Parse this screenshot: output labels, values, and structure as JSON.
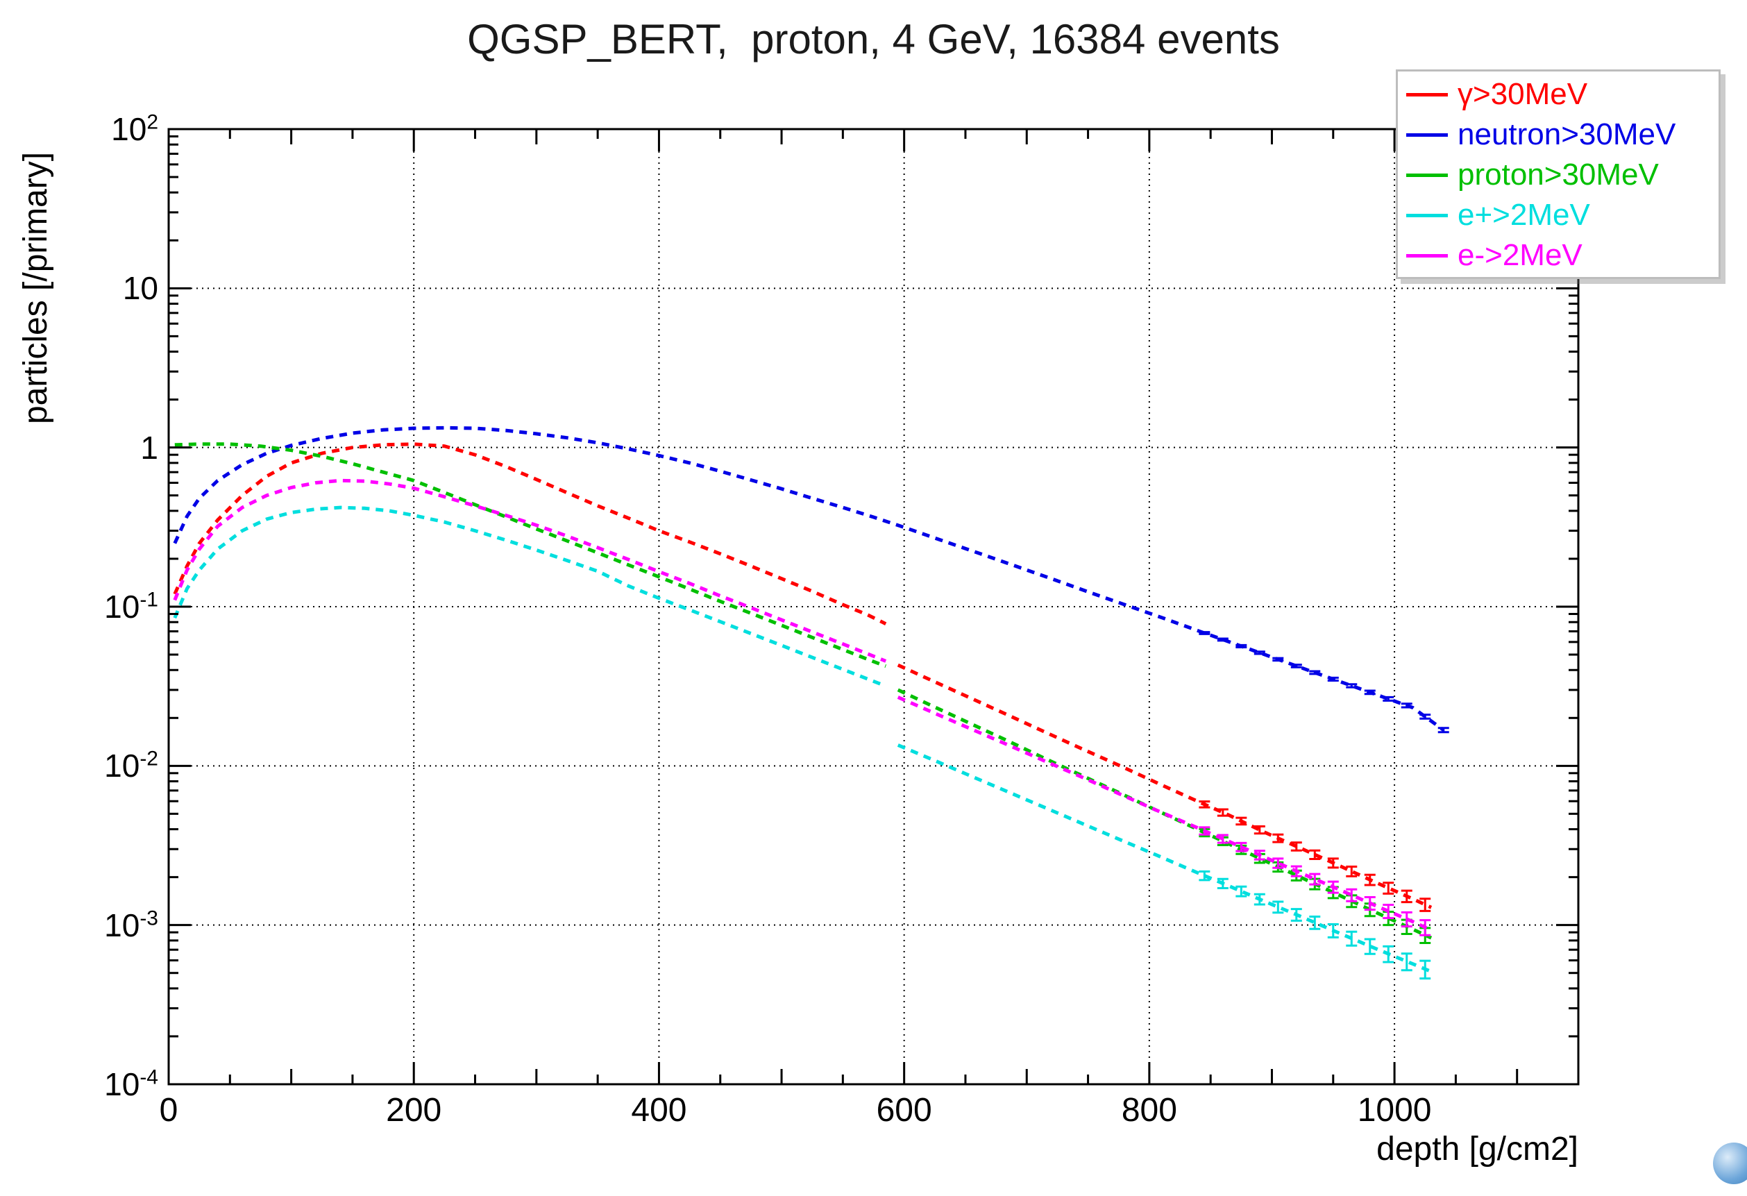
{
  "chart_data": {
    "type": "line",
    "title": "QGSP_BERT,  proton, 4 GeV, 16384 events",
    "xlabel": "depth [g/cm2]",
    "ylabel": "particles [/primary]",
    "x_axis": {
      "min": 0,
      "max": 1150,
      "major_ticks": [
        0,
        200,
        400,
        600,
        800,
        1000
      ],
      "minor_step": 50,
      "tick_labels": [
        "0",
        "200",
        "400",
        "600",
        "800",
        "1000"
      ]
    },
    "y_axis": {
      "scale": "log",
      "min": 0.0001,
      "max": 100,
      "ticks": [
        {
          "main": "10",
          "sup": "2",
          "value": 100
        },
        {
          "main": "10",
          "sup": "",
          "value": 10
        },
        {
          "main": "1",
          "sup": "",
          "value": 1
        },
        {
          "main": "10",
          "sup": "-1",
          "value": 0.1
        },
        {
          "main": "10",
          "sup": "-2",
          "value": 0.01
        },
        {
          "main": "10",
          "sup": "-3",
          "value": 0.001
        },
        {
          "main": "10",
          "sup": "-4",
          "value": 0.0001
        }
      ]
    },
    "grid": {
      "show": true,
      "style": "dotted",
      "color": "#000000"
    },
    "legend": {
      "position": "top-right",
      "border_color": "#bdbdbd",
      "entries": [
        {
          "label": "γ>30MeV",
          "color": "#ff0000"
        },
        {
          "label": "neutron>30MeV",
          "color": "#0000e6"
        },
        {
          "label": "proton>30MeV",
          "color": "#00bf00"
        },
        {
          "label": "e+>2MeV",
          "color": "#00dede"
        },
        {
          "label": "e->2MeV",
          "color": "#ff00ff"
        }
      ]
    },
    "error_bars": {
      "from_x": 845,
      "step_x": 15,
      "tau": 250
    },
    "series": [
      {
        "key": "gamma",
        "name": "gamma>30MeV",
        "color": "#ff0000",
        "rel_err_end": 0.09,
        "segments": [
          [
            [
              5,
              0.12
            ],
            [
              15,
              0.18
            ],
            [
              25,
              0.25
            ],
            [
              40,
              0.35
            ],
            [
              60,
              0.5
            ],
            [
              80,
              0.66
            ],
            [
              100,
              0.8
            ],
            [
              125,
              0.92
            ],
            [
              150,
              1.0
            ],
            [
              175,
              1.04
            ],
            [
              200,
              1.05
            ],
            [
              225,
              1.02
            ],
            [
              250,
              0.9
            ],
            [
              275,
              0.76
            ],
            [
              300,
              0.63
            ],
            [
              325,
              0.52
            ],
            [
              350,
              0.43
            ],
            [
              375,
              0.36
            ],
            [
              400,
              0.3
            ],
            [
              425,
              0.255
            ],
            [
              450,
              0.215
            ],
            [
              475,
              0.18
            ],
            [
              500,
              0.15
            ],
            [
              525,
              0.125
            ],
            [
              550,
              0.103
            ],
            [
              570,
              0.089
            ],
            [
              585,
              0.078
            ]
          ],
          [
            [
              595,
              0.043
            ],
            [
              625,
              0.0337
            ],
            [
              655,
              0.0265
            ],
            [
              685,
              0.0208
            ],
            [
              715,
              0.0163
            ],
            [
              745,
              0.0128
            ],
            [
              775,
              0.0101
            ],
            [
              805,
              0.0079
            ],
            [
              835,
              0.0062
            ],
            [
              865,
              0.0049
            ],
            [
              895,
              0.0038
            ],
            [
              925,
              0.003
            ],
            [
              955,
              0.00236
            ],
            [
              985,
              0.00185
            ],
            [
              1015,
              0.00146
            ],
            [
              1030,
              0.00129
            ]
          ]
        ]
      },
      {
        "key": "neutron",
        "name": "neutron>30MeV",
        "color": "#0000e6",
        "rel_err_end": 0.03,
        "segments": [
          [
            [
              5,
              0.25
            ],
            [
              15,
              0.37
            ],
            [
              25,
              0.48
            ],
            [
              40,
              0.62
            ],
            [
              60,
              0.78
            ],
            [
              80,
              0.92
            ],
            [
              100,
              1.03
            ],
            [
              125,
              1.14
            ],
            [
              150,
              1.23
            ],
            [
              175,
              1.29
            ],
            [
              200,
              1.32
            ],
            [
              225,
              1.33
            ],
            [
              250,
              1.32
            ],
            [
              275,
              1.28
            ],
            [
              300,
              1.22
            ],
            [
              325,
              1.15
            ],
            [
              350,
              1.07
            ],
            [
              375,
              0.98
            ],
            [
              400,
              0.89
            ],
            [
              425,
              0.8
            ],
            [
              450,
              0.71
            ],
            [
              475,
              0.625
            ],
            [
              500,
              0.55
            ],
            [
              525,
              0.48
            ],
            [
              550,
              0.42
            ],
            [
              575,
              0.365
            ],
            [
              600,
              0.315
            ],
            [
              630,
              0.262
            ],
            [
              660,
              0.218
            ],
            [
              690,
              0.181
            ],
            [
              720,
              0.15
            ],
            [
              750,
              0.124
            ],
            [
              780,
              0.103
            ],
            [
              810,
              0.0855
            ],
            [
              840,
              0.0705
            ],
            [
              870,
              0.0583
            ],
            [
              900,
              0.0482
            ],
            [
              930,
              0.0398
            ],
            [
              960,
              0.0329
            ],
            [
              990,
              0.0272
            ],
            [
              1015,
              0.0232
            ],
            [
              1040,
              0.0168
            ]
          ]
        ]
      },
      {
        "key": "proton",
        "name": "proton>30MeV",
        "color": "#00bf00",
        "rel_err_end": 0.11,
        "segments": [
          [
            [
              5,
              1.04
            ],
            [
              25,
              1.05
            ],
            [
              50,
              1.05
            ],
            [
              75,
              1.02
            ],
            [
              100,
              0.96
            ],
            [
              125,
              0.88
            ],
            [
              150,
              0.79
            ],
            [
              175,
              0.7
            ],
            [
              200,
              0.62
            ],
            [
              225,
              0.521
            ],
            [
              250,
              0.437
            ],
            [
              275,
              0.367
            ],
            [
              300,
              0.308
            ],
            [
              325,
              0.259
            ],
            [
              350,
              0.218
            ],
            [
              375,
              0.183
            ],
            [
              400,
              0.154
            ],
            [
              425,
              0.129
            ],
            [
              450,
              0.108
            ],
            [
              475,
              0.0909
            ],
            [
              500,
              0.0763
            ],
            [
              525,
              0.0641
            ],
            [
              550,
              0.0538
            ],
            [
              575,
              0.0452
            ],
            [
              585,
              0.0423
            ]
          ],
          [
            [
              595,
              0.03
            ],
            [
              625,
              0.0234
            ],
            [
              655,
              0.0183
            ],
            [
              685,
              0.0143
            ],
            [
              715,
              0.0111
            ],
            [
              745,
              0.0087
            ],
            [
              775,
              0.0068
            ],
            [
              805,
              0.0053
            ],
            [
              835,
              0.00414
            ],
            [
              865,
              0.00323
            ],
            [
              895,
              0.00252
            ],
            [
              925,
              0.00197
            ],
            [
              955,
              0.00154
            ],
            [
              985,
              0.0012
            ],
            [
              1015,
              0.00094
            ],
            [
              1030,
              0.00083
            ]
          ]
        ]
      },
      {
        "key": "eplus",
        "name": "e+>2MeV",
        "color": "#00dede",
        "rel_err_end": 0.13,
        "segments": [
          [
            [
              5,
              0.085
            ],
            [
              15,
              0.13
            ],
            [
              25,
              0.17
            ],
            [
              40,
              0.23
            ],
            [
              60,
              0.3
            ],
            [
              80,
              0.355
            ],
            [
              100,
              0.39
            ],
            [
              120,
              0.41
            ],
            [
              140,
              0.42
            ],
            [
              160,
              0.415
            ],
            [
              180,
              0.4
            ],
            [
              200,
              0.375
            ],
            [
              225,
              0.34
            ],
            [
              250,
              0.3
            ],
            [
              275,
              0.262
            ],
            [
              300,
              0.227
            ],
            [
              325,
              0.195
            ],
            [
              350,
              0.167
            ],
            [
              375,
              0.135
            ],
            [
              400,
              0.113
            ],
            [
              425,
              0.0955
            ],
            [
              450,
              0.0805
            ],
            [
              475,
              0.0678
            ],
            [
              500,
              0.0571
            ],
            [
              525,
              0.048
            ],
            [
              550,
              0.0404
            ],
            [
              575,
              0.034
            ],
            [
              585,
              0.0317
            ]
          ],
          [
            [
              595,
              0.0135
            ],
            [
              625,
              0.0108
            ],
            [
              655,
              0.0086
            ],
            [
              685,
              0.00685
            ],
            [
              715,
              0.00546
            ],
            [
              745,
              0.00435
            ],
            [
              775,
              0.00347
            ],
            [
              805,
              0.00277
            ],
            [
              835,
              0.0022
            ],
            [
              865,
              0.00176
            ],
            [
              895,
              0.0014
            ],
            [
              925,
              0.00112
            ],
            [
              955,
              0.00089
            ],
            [
              985,
              0.00071
            ],
            [
              1015,
              0.00057
            ],
            [
              1030,
              0.00051
            ]
          ]
        ]
      },
      {
        "key": "eminus",
        "name": "e->2MeV",
        "color": "#ff00ff",
        "rel_err_end": 0.11,
        "segments": [
          [
            [
              5,
              0.11
            ],
            [
              15,
              0.17
            ],
            [
              25,
              0.23
            ],
            [
              40,
              0.32
            ],
            [
              60,
              0.42
            ],
            [
              80,
              0.5
            ],
            [
              100,
              0.56
            ],
            [
              120,
              0.6
            ],
            [
              140,
              0.62
            ],
            [
              160,
              0.615
            ],
            [
              180,
              0.59
            ],
            [
              200,
              0.555
            ],
            [
              225,
              0.49
            ],
            [
              250,
              0.43
            ],
            [
              275,
              0.375
            ],
            [
              300,
              0.325
            ],
            [
              325,
              0.278
            ],
            [
              350,
              0.235
            ],
            [
              375,
              0.198
            ],
            [
              400,
              0.166
            ],
            [
              425,
              0.14
            ],
            [
              450,
              0.117
            ],
            [
              475,
              0.0985
            ],
            [
              500,
              0.0826
            ],
            [
              525,
              0.0694
            ],
            [
              550,
              0.0583
            ],
            [
              575,
              0.0489
            ],
            [
              585,
              0.0455
            ]
          ],
          [
            [
              595,
              0.027
            ],
            [
              625,
              0.0214
            ],
            [
              655,
              0.017
            ],
            [
              685,
              0.0135
            ],
            [
              715,
              0.0107
            ],
            [
              745,
              0.0085
            ],
            [
              775,
              0.0067
            ],
            [
              805,
              0.0053
            ],
            [
              835,
              0.00422
            ],
            [
              865,
              0.00335
            ],
            [
              895,
              0.00265
            ],
            [
              925,
              0.0021
            ],
            [
              955,
              0.00167
            ],
            [
              985,
              0.00132
            ],
            [
              1015,
              0.00105
            ],
            [
              1030,
              0.00093
            ]
          ]
        ]
      }
    ]
  }
}
